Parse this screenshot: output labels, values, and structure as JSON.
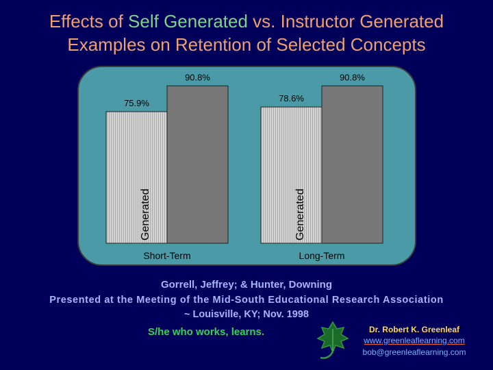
{
  "title": {
    "line1": [
      "Effects of ",
      "Self Generated",
      " vs. ",
      "Instructor Generated"
    ],
    "line2": [
      "Examples on ",
      "Retention",
      " of ",
      "Selected Concepts"
    ]
  },
  "chart_data": {
    "type": "bar",
    "categories": [
      "Short-Term",
      "Long-Term"
    ],
    "series": [
      {
        "values": [
          75.9,
          78.6
        ],
        "labels": [
          "75.9%",
          "78.6%"
        ],
        "fill": "hatched-light-gray",
        "inner_label": "Generated"
      },
      {
        "values": [
          90.8,
          90.8
        ],
        "labels": [
          "90.8%",
          "90.8%"
        ],
        "fill": "#787878"
      }
    ],
    "ylim": [
      0,
      100
    ],
    "grid": false,
    "panel_color": "#4a9aa8"
  },
  "footer": {
    "authors": "Gorrell, Jeffrey; & Hunter, Downing",
    "meeting": "Presented at the Meeting of the Mid-South Educational Research Association",
    "location": "~ Louisville, KY; Nov. 1998",
    "motto": "S/he who works, learns.",
    "name": "Dr. Robert K. Greenleaf",
    "website": "www.greenleaflearning.com",
    "email": "bob@greenleaflearning.com"
  },
  "colors": {
    "background": "#00005a",
    "title_primary": "#f0a070",
    "title_highlight": "#7fd48a",
    "motto": "#33d455",
    "name": "#ffd84a",
    "link": "#7ab0ff"
  }
}
